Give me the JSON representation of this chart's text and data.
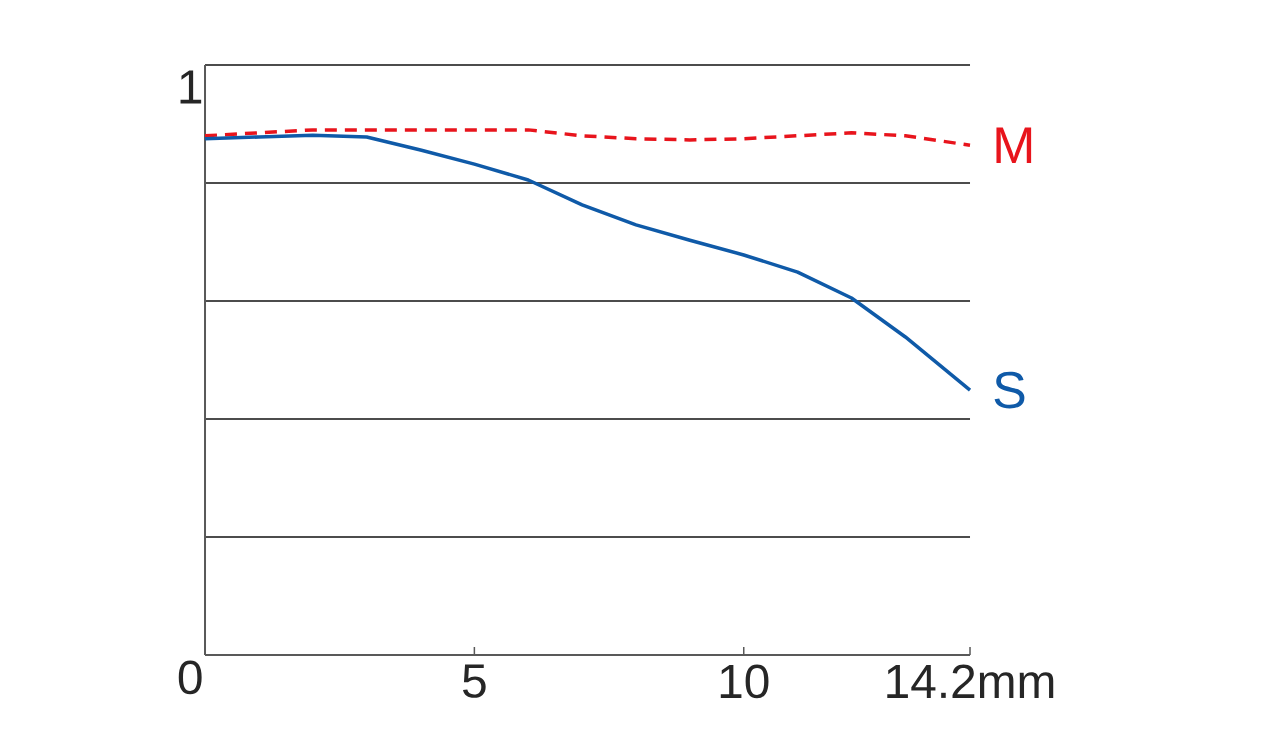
{
  "chart_data": {
    "type": "line",
    "x": [
      0,
      1,
      2,
      3,
      4,
      5,
      6,
      7,
      8,
      9,
      10,
      11,
      12,
      13,
      14.2
    ],
    "series": [
      {
        "name": "M",
        "color": "#e8141c",
        "line_style": "dashed",
        "values": [
          0.88,
          0.885,
          0.89,
          0.89,
          0.89,
          0.89,
          0.89,
          0.88,
          0.875,
          0.873,
          0.875,
          0.88,
          0.885,
          0.88,
          0.864
        ]
      },
      {
        "name": "S",
        "color": "#0f5aa8",
        "line_style": "solid",
        "values": [
          0.875,
          0.878,
          0.881,
          0.878,
          0.856,
          0.832,
          0.805,
          0.763,
          0.729,
          0.703,
          0.678,
          0.649,
          0.605,
          0.539,
          0.449
        ]
      }
    ],
    "xlim": [
      0,
      14.2
    ],
    "ylim": [
      0,
      1
    ],
    "xticks": [
      {
        "value": 0,
        "label": null
      },
      5,
      10,
      {
        "value": 14.2,
        "label": "14.2mm"
      }
    ],
    "yticks": [
      0,
      {
        "value": 0.2,
        "label": null
      },
      {
        "value": 0.4,
        "label": null
      },
      {
        "value": 0.6,
        "label": null
      },
      {
        "value": 0.8,
        "label": null
      },
      1
    ],
    "grid": "y",
    "marker": "none"
  }
}
